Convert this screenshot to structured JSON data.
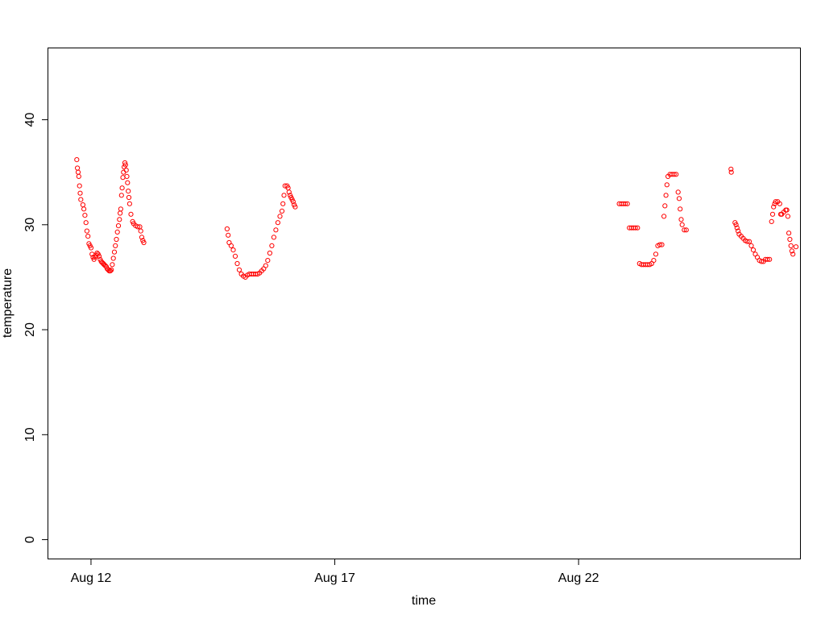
{
  "chart_data": {
    "type": "scatter",
    "title": "",
    "xlabel": "time",
    "ylabel": "temperature",
    "ylim": [
      -1.8,
      46.8
    ],
    "xlim": [
      "2024-08-11 03:00",
      "2024-08-26 13:00"
    ],
    "x_ticks": [
      {
        "date": "2024-08-12",
        "label": "Aug 12"
      },
      {
        "date": "2024-08-17",
        "label": "Aug 17"
      },
      {
        "date": "2024-08-22",
        "label": "Aug 22"
      }
    ],
    "y_ticks": [
      0,
      10,
      20,
      30,
      40
    ],
    "grid": false,
    "legend": "none",
    "point_color": "#ff0000",
    "marker": "open-circle",
    "series": [
      {
        "points": [
          [
            "2024-08-11 17:00",
            36.2
          ],
          [
            "2024-08-11 17:20",
            35.4
          ],
          [
            "2024-08-11 17:40",
            35.0
          ],
          [
            "2024-08-11 18:00",
            34.6
          ],
          [
            "2024-08-11 18:20",
            33.7
          ],
          [
            "2024-08-11 18:40",
            33.0
          ],
          [
            "2024-08-11 19:00",
            32.4
          ],
          [
            "2024-08-11 20:00",
            31.9
          ],
          [
            "2024-08-11 20:30",
            31.5
          ],
          [
            "2024-08-11 21:00",
            30.9
          ],
          [
            "2024-08-11 21:30",
            30.2
          ],
          [
            "2024-08-11 22:00",
            29.4
          ],
          [
            "2024-08-11 22:30",
            28.9
          ],
          [
            "2024-08-11 23:00",
            28.2
          ],
          [
            "2024-08-11 23:30",
            28.0
          ],
          [
            "2024-08-12 00:00",
            27.8
          ],
          [
            "2024-08-12 00:30",
            27.2
          ],
          [
            "2024-08-12 01:00",
            26.9
          ],
          [
            "2024-08-12 01:30",
            26.7
          ],
          [
            "2024-08-12 02:00",
            26.9
          ],
          [
            "2024-08-12 02:30",
            27.1
          ],
          [
            "2024-08-12 03:00",
            27.3
          ],
          [
            "2024-08-12 03:30",
            27.2
          ],
          [
            "2024-08-12 04:00",
            27.0
          ],
          [
            "2024-08-12 04:30",
            26.7
          ],
          [
            "2024-08-12 05:00",
            26.5
          ],
          [
            "2024-08-12 05:30",
            26.4
          ],
          [
            "2024-08-12 06:00",
            26.3
          ],
          [
            "2024-08-12 06:30",
            26.2
          ],
          [
            "2024-08-12 07:00",
            26.1
          ],
          [
            "2024-08-12 07:30",
            26.0
          ],
          [
            "2024-08-12 08:00",
            25.8
          ],
          [
            "2024-08-12 08:30",
            25.7
          ],
          [
            "2024-08-12 09:00",
            25.6
          ],
          [
            "2024-08-12 09:30",
            25.6
          ],
          [
            "2024-08-12 10:00",
            25.7
          ],
          [
            "2024-08-12 10:30",
            26.2
          ],
          [
            "2024-08-12 11:00",
            26.8
          ],
          [
            "2024-08-12 11:30",
            27.4
          ],
          [
            "2024-08-12 12:00",
            28.0
          ],
          [
            "2024-08-12 12:30",
            28.6
          ],
          [
            "2024-08-12 13:00",
            29.3
          ],
          [
            "2024-08-12 13:30",
            29.9
          ],
          [
            "2024-08-12 14:00",
            30.5
          ],
          [
            "2024-08-12 14:20",
            31.1
          ],
          [
            "2024-08-12 14:40",
            31.5
          ],
          [
            "2024-08-12 15:00",
            32.8
          ],
          [
            "2024-08-12 15:20",
            33.5
          ],
          [
            "2024-08-12 15:40",
            34.5
          ],
          [
            "2024-08-12 16:00",
            35.0
          ],
          [
            "2024-08-12 16:20",
            35.5
          ],
          [
            "2024-08-12 16:40",
            35.9
          ],
          [
            "2024-08-12 17:00",
            35.7
          ],
          [
            "2024-08-12 17:20",
            35.2
          ],
          [
            "2024-08-12 17:40",
            34.6
          ],
          [
            "2024-08-12 18:00",
            34.0
          ],
          [
            "2024-08-12 18:20",
            33.2
          ],
          [
            "2024-08-12 18:40",
            32.6
          ],
          [
            "2024-08-12 19:00",
            32.0
          ],
          [
            "2024-08-12 19:40",
            31.0
          ],
          [
            "2024-08-12 20:30",
            30.3
          ],
          [
            "2024-08-12 21:00",
            30.1
          ],
          [
            "2024-08-12 22:00",
            29.9
          ],
          [
            "2024-08-12 23:00",
            29.8
          ],
          [
            "2024-08-13 00:00",
            29.8
          ],
          [
            "2024-08-13 00:30",
            29.4
          ],
          [
            "2024-08-13 01:00",
            28.8
          ],
          [
            "2024-08-13 01:30",
            28.5
          ],
          [
            "2024-08-13 02:00",
            28.3
          ]
        ]
      },
      {
        "points": [
          [
            "2024-08-14 19:00",
            29.6
          ],
          [
            "2024-08-14 19:30",
            29.0
          ],
          [
            "2024-08-14 20:00",
            28.3
          ],
          [
            "2024-08-14 21:00",
            28.0
          ],
          [
            "2024-08-14 22:00",
            27.6
          ],
          [
            "2024-08-14 23:00",
            27.0
          ],
          [
            "2024-08-15 00:00",
            26.3
          ],
          [
            "2024-08-15 01:00",
            25.7
          ],
          [
            "2024-08-15 02:00",
            25.3
          ],
          [
            "2024-08-15 03:00",
            25.1
          ],
          [
            "2024-08-15 04:00",
            25.0
          ],
          [
            "2024-08-15 05:00",
            25.2
          ],
          [
            "2024-08-15 06:00",
            25.3
          ],
          [
            "2024-08-15 07:00",
            25.3
          ],
          [
            "2024-08-15 08:00",
            25.3
          ],
          [
            "2024-08-15 09:00",
            25.3
          ],
          [
            "2024-08-15 10:00",
            25.3
          ],
          [
            "2024-08-15 11:00",
            25.4
          ],
          [
            "2024-08-15 12:00",
            25.6
          ],
          [
            "2024-08-15 13:00",
            25.8
          ],
          [
            "2024-08-15 14:00",
            26.1
          ],
          [
            "2024-08-15 15:00",
            26.6
          ],
          [
            "2024-08-15 16:00",
            27.3
          ],
          [
            "2024-08-15 17:00",
            28.0
          ],
          [
            "2024-08-15 18:00",
            28.8
          ],
          [
            "2024-08-15 19:00",
            29.5
          ],
          [
            "2024-08-15 20:00",
            30.2
          ],
          [
            "2024-08-15 21:00",
            30.8
          ],
          [
            "2024-08-15 22:00",
            31.3
          ],
          [
            "2024-08-15 22:30",
            32.0
          ],
          [
            "2024-08-15 23:00",
            32.8
          ],
          [
            "2024-08-15 23:30",
            33.7
          ],
          [
            "2024-08-16 00:30",
            33.7
          ],
          [
            "2024-08-16 01:00",
            33.5
          ],
          [
            "2024-08-16 01:30",
            33.1
          ],
          [
            "2024-08-16 02:00",
            32.8
          ],
          [
            "2024-08-16 02:30",
            32.6
          ],
          [
            "2024-08-16 03:00",
            32.4
          ],
          [
            "2024-08-16 03:30",
            32.2
          ],
          [
            "2024-08-16 04:00",
            31.9
          ],
          [
            "2024-08-16 04:30",
            31.7
          ]
        ]
      },
      {
        "points": [
          [
            "2024-08-22 20:00",
            32.0
          ],
          [
            "2024-08-22 21:00",
            32.0
          ],
          [
            "2024-08-22 22:00",
            32.0
          ],
          [
            "2024-08-22 23:00",
            32.0
          ],
          [
            "2024-08-23 00:00",
            32.0
          ],
          [
            "2024-08-23 01:00",
            29.7
          ],
          [
            "2024-08-23 02:00",
            29.7
          ],
          [
            "2024-08-23 03:00",
            29.7
          ],
          [
            "2024-08-23 04:00",
            29.7
          ],
          [
            "2024-08-23 05:00",
            29.7
          ],
          [
            "2024-08-23 06:00",
            26.3
          ],
          [
            "2024-08-23 07:00",
            26.2
          ],
          [
            "2024-08-23 08:00",
            26.2
          ],
          [
            "2024-08-23 09:00",
            26.2
          ],
          [
            "2024-08-23 10:00",
            26.2
          ],
          [
            "2024-08-23 11:00",
            26.2
          ],
          [
            "2024-08-23 12:00",
            26.3
          ],
          [
            "2024-08-23 13:00",
            26.6
          ],
          [
            "2024-08-23 14:00",
            27.2
          ],
          [
            "2024-08-23 15:00",
            28.0
          ],
          [
            "2024-08-23 16:00",
            28.1
          ],
          [
            "2024-08-23 17:00",
            28.1
          ],
          [
            "2024-08-23 18:00",
            30.8
          ],
          [
            "2024-08-23 18:30",
            31.8
          ],
          [
            "2024-08-23 19:00",
            32.8
          ],
          [
            "2024-08-23 19:30",
            33.8
          ],
          [
            "2024-08-23 20:00",
            34.6
          ],
          [
            "2024-08-23 21:00",
            34.8
          ],
          [
            "2024-08-23 22:00",
            34.8
          ],
          [
            "2024-08-23 23:00",
            34.8
          ],
          [
            "2024-08-24 00:00",
            34.8
          ],
          [
            "2024-08-24 01:00",
            33.1
          ],
          [
            "2024-08-24 01:30",
            32.5
          ],
          [
            "2024-08-24 02:00",
            31.5
          ],
          [
            "2024-08-24 02:30",
            30.5
          ],
          [
            "2024-08-24 03:00",
            30.0
          ],
          [
            "2024-08-24 04:00",
            29.5
          ],
          [
            "2024-08-24 05:00",
            29.5
          ]
        ]
      },
      {
        "points": [
          [
            "2024-08-25 03:00",
            35.3
          ],
          [
            "2024-08-25 03:10",
            35.0
          ],
          [
            "2024-08-25 05:00",
            30.2
          ],
          [
            "2024-08-25 05:30",
            30.0
          ],
          [
            "2024-08-25 06:00",
            29.7
          ],
          [
            "2024-08-25 06:30",
            29.4
          ],
          [
            "2024-08-25 07:00",
            29.1
          ],
          [
            "2024-08-25 08:00",
            28.9
          ],
          [
            "2024-08-25 09:00",
            28.7
          ],
          [
            "2024-08-25 10:00",
            28.5
          ],
          [
            "2024-08-25 11:00",
            28.4
          ],
          [
            "2024-08-25 12:00",
            28.4
          ],
          [
            "2024-08-25 13:00",
            28.0
          ],
          [
            "2024-08-25 14:00",
            27.6
          ],
          [
            "2024-08-25 15:00",
            27.2
          ],
          [
            "2024-08-25 16:00",
            26.9
          ],
          [
            "2024-08-25 17:00",
            26.6
          ],
          [
            "2024-08-25 18:00",
            26.5
          ],
          [
            "2024-08-25 19:00",
            26.5
          ],
          [
            "2024-08-25 20:00",
            26.7
          ],
          [
            "2024-08-25 21:00",
            26.7
          ],
          [
            "2024-08-25 22:00",
            26.7
          ],
          [
            "2024-08-25 23:00",
            30.3
          ],
          [
            "2024-08-25 23:30",
            31.0
          ],
          [
            "2024-08-26 00:00",
            31.7
          ],
          [
            "2024-08-26 00:30",
            32.0
          ],
          [
            "2024-08-26 01:00",
            32.2
          ],
          [
            "2024-08-26 02:00",
            32.2
          ],
          [
            "2024-08-26 03:00",
            32.0
          ],
          [
            "2024-08-26 03:30",
            31.0
          ],
          [
            "2024-08-26 04:00",
            31.0
          ],
          [
            "2024-08-26 05:00",
            31.2
          ],
          [
            "2024-08-26 06:00",
            31.4
          ],
          [
            "2024-08-26 06:30",
            31.4
          ],
          [
            "2024-08-26 07:00",
            30.8
          ],
          [
            "2024-08-26 07:30",
            29.2
          ],
          [
            "2024-08-26 08:00",
            28.6
          ],
          [
            "2024-08-26 08:30",
            28.0
          ],
          [
            "2024-08-26 09:00",
            27.5
          ],
          [
            "2024-08-26 09:30",
            27.2
          ],
          [
            "2024-08-26 11:00",
            27.9
          ]
        ]
      }
    ]
  }
}
